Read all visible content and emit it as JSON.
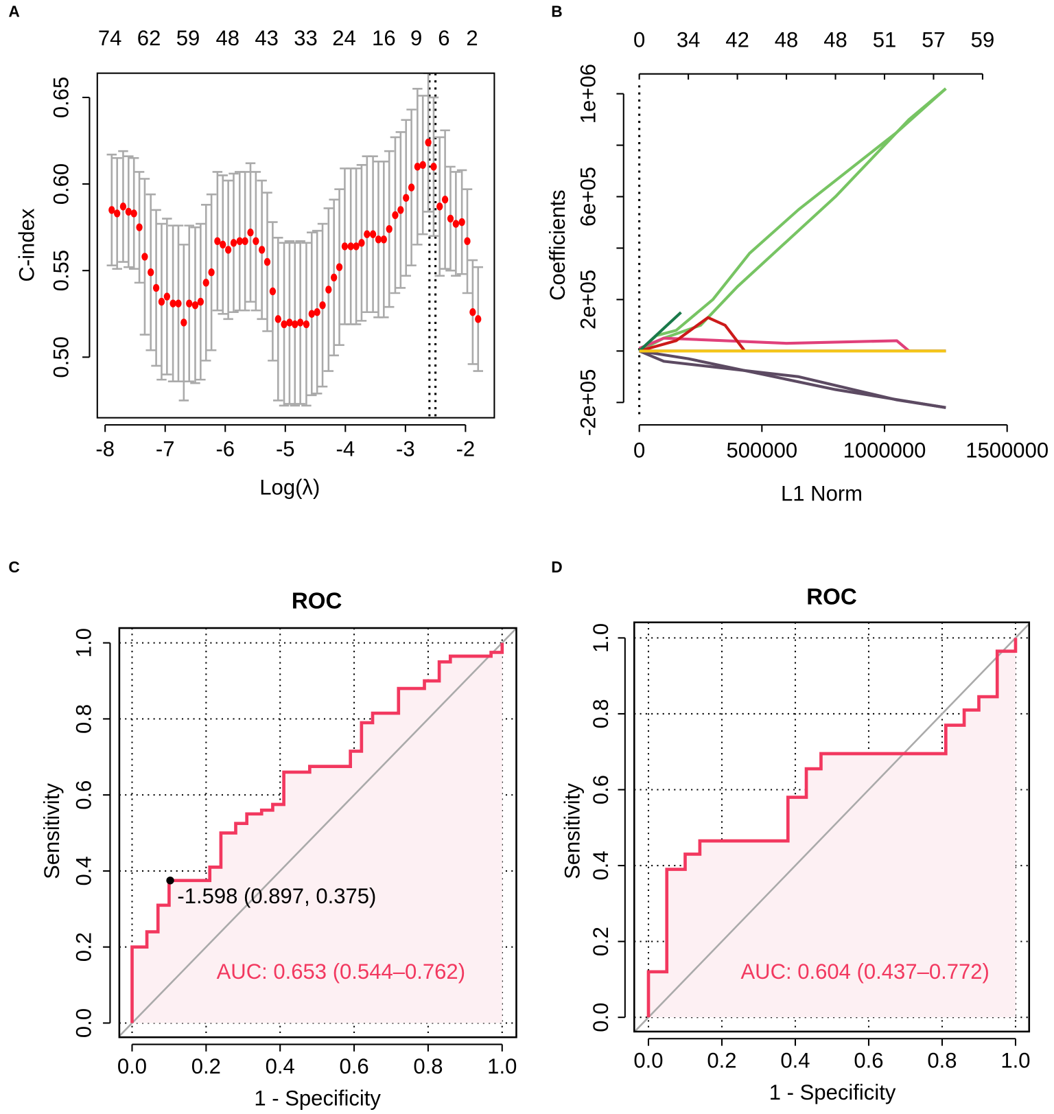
{
  "chart_data": [
    {
      "type": "errorbar",
      "panel_label": "A",
      "xlabel": "Log(λ)",
      "ylabel": "C-index",
      "x": [
        -7.89,
        -7.8,
        -7.7,
        -7.61,
        -7.52,
        -7.43,
        -7.34,
        -7.24,
        -7.15,
        -7.06,
        -6.97,
        -6.87,
        -6.78,
        -6.69,
        -6.6,
        -6.5,
        -6.41,
        -6.32,
        -6.23,
        -6.13,
        -6.04,
        -5.95,
        -5.86,
        -5.76,
        -5.67,
        -5.58,
        -5.49,
        -5.39,
        -5.3,
        -5.21,
        -5.12,
        -5.02,
        -4.93,
        -4.84,
        -4.75,
        -4.65,
        -4.56,
        -4.47,
        -4.38,
        -4.28,
        -4.19,
        -4.1,
        -4.01,
        -3.91,
        -3.82,
        -3.73,
        -3.64,
        -3.54,
        -3.45,
        -3.36,
        -3.27,
        -3.17,
        -3.08,
        -2.99,
        -2.9,
        -2.8,
        -2.71,
        -2.62,
        -2.53,
        -2.43,
        -2.34,
        -2.25,
        -2.16,
        -2.06,
        -1.97,
        -1.88,
        -1.79
      ],
      "values": [
        0.585,
        0.583,
        0.587,
        0.584,
        0.583,
        0.575,
        0.558,
        0.549,
        0.54,
        0.532,
        0.535,
        0.531,
        0.531,
        0.52,
        0.531,
        0.53,
        0.532,
        0.543,
        0.549,
        0.567,
        0.565,
        0.562,
        0.566,
        0.567,
        0.567,
        0.572,
        0.567,
        0.562,
        0.555,
        0.538,
        0.522,
        0.519,
        0.52,
        0.519,
        0.52,
        0.519,
        0.525,
        0.526,
        0.53,
        0.539,
        0.546,
        0.552,
        0.564,
        0.564,
        0.564,
        0.566,
        0.571,
        0.571,
        0.568,
        0.568,
        0.574,
        0.582,
        0.585,
        0.592,
        0.598,
        0.61,
        0.611,
        0.624,
        0.61,
        0.587,
        0.591,
        0.58,
        0.577,
        0.578,
        0.567,
        0.526,
        0.522
      ],
      "errors": [
        0.032,
        0.032,
        0.032,
        0.032,
        0.032,
        0.032,
        0.045,
        0.045,
        0.045,
        0.045,
        0.045,
        0.045,
        0.045,
        0.045,
        0.045,
        0.045,
        0.045,
        0.045,
        0.045,
        0.04,
        0.04,
        0.04,
        0.04,
        0.04,
        0.04,
        0.04,
        0.04,
        0.04,
        0.04,
        0.04,
        0.047,
        0.047,
        0.047,
        0.047,
        0.047,
        0.047,
        0.047,
        0.047,
        0.047,
        0.047,
        0.045,
        0.045,
        0.045,
        0.045,
        0.045,
        0.045,
        0.045,
        0.045,
        0.045,
        0.045,
        0.045,
        0.045,
        0.045,
        0.045,
        0.045,
        0.045,
        0.04,
        0.04,
        0.04,
        0.04,
        0.04,
        0.03,
        0.03,
        0.03,
        0.03,
        0.03,
        0.03
      ],
      "color": "#ff0000",
      "error_color": "#aaaaaa",
      "vlines": [
        -2.6,
        -2.5
      ],
      "xlim": [
        -8.13,
        -1.52
      ],
      "ylim": [
        0.465,
        0.664
      ],
      "xticks": [
        -8,
        -7,
        -6,
        -5,
        -4,
        -3,
        -2
      ],
      "yticks": [
        {
          "value": 0.5,
          "label": "0.50"
        },
        0.55,
        {
          "value": 0.6,
          "label": "0.60"
        },
        0.65
      ],
      "top_ticks": [
        {
          "value": -7.92,
          "label": "74"
        },
        {
          "value": -7.27,
          "label": "62"
        },
        {
          "value": -6.62,
          "label": "59"
        },
        {
          "value": -5.96,
          "label": "48"
        },
        {
          "value": -5.31,
          "label": "43"
        },
        {
          "value": -4.66,
          "label": "33"
        },
        {
          "value": -4.02,
          "label": "24"
        },
        {
          "value": -3.36,
          "label": "16"
        },
        {
          "value": -2.82,
          "label": "9"
        },
        {
          "value": -2.36,
          "label": "6"
        },
        {
          "value": -1.89,
          "label": "2"
        }
      ]
    },
    {
      "type": "line",
      "panel_label": "B",
      "xlabel": "L1 Norm",
      "ylabel": "Coefficients",
      "series": [
        {
          "color": "#77c463",
          "x": [
            0,
            70000,
            150000,
            300000,
            450000,
            650000,
            1050000,
            1250000
          ],
          "values": [
            0,
            60000,
            80000,
            200000,
            380000,
            550000,
            850000,
            1020000
          ]
        },
        {
          "color": "#77c463",
          "x": [
            0,
            100000,
            250000,
            400000,
            800000,
            1100000,
            1250000
          ],
          "values": [
            0,
            50000,
            100000,
            250000,
            600000,
            900000,
            1020000
          ]
        },
        {
          "color": "#5c4a62",
          "x": [
            0,
            100000,
            650000,
            1050000,
            1250000
          ],
          "values": [
            0,
            -40000,
            -100000,
            -190000,
            -220000
          ]
        },
        {
          "color": "#5c4a62",
          "x": [
            0,
            200000,
            800000,
            1250000
          ],
          "values": [
            0,
            -30000,
            -150000,
            -220000
          ]
        },
        {
          "color": "#e0407a",
          "x": [
            0,
            100000,
            600000,
            1050000,
            1100000,
            1250000
          ],
          "values": [
            10000,
            50000,
            30000,
            40000,
            0,
            0
          ]
        },
        {
          "color": "#cc1a1a",
          "x": [
            0,
            150000,
            280000,
            350000,
            430000
          ],
          "values": [
            0,
            40000,
            130000,
            100000,
            0
          ]
        },
        {
          "color": "#1a7a4a",
          "x": [
            0,
            170000
          ],
          "values": [
            0,
            150000
          ]
        },
        {
          "color": "#000000",
          "x": [
            0,
            1250000
          ],
          "values": [
            0,
            0
          ]
        },
        {
          "color": "#f5c518",
          "x": [
            0,
            1250000
          ],
          "values": [
            0,
            0
          ]
        }
      ],
      "vlines": [
        0
      ],
      "xlim": [
        -64000,
        1500000
      ],
      "ylim": [
        -265000,
        1033000
      ],
      "xticks": [
        0,
        500000,
        1000000,
        1500000
      ],
      "yticks": [
        {
          "value": -200000,
          "label": "-2e+05"
        },
        {
          "value": 200000,
          "label": "2e+05"
        },
        {
          "value": 600000,
          "label": "6e+05"
        },
        {
          "value": 1000000,
          "label": "1e+06"
        }
      ],
      "yminor_ticks": [
        0,
        400000,
        800000
      ],
      "top_ticks": [
        {
          "value": 0,
          "label": "0"
        },
        {
          "value": 200000,
          "label": "34"
        },
        {
          "value": 400000,
          "label": "42"
        },
        {
          "value": 600000,
          "label": "48"
        },
        {
          "value": 800000,
          "label": "48"
        },
        {
          "value": 1000000,
          "label": "51"
        },
        {
          "value": 1200000,
          "label": "57"
        },
        {
          "value": 1400000,
          "label": "59"
        }
      ]
    },
    {
      "type": "roc",
      "panel_label": "C",
      "title": "ROC",
      "xlabel": "1 - Specificity",
      "ylabel": "Sensitivity",
      "x": [
        0,
        0,
        0.04,
        0.04,
        0.07,
        0.07,
        0.1,
        0.1,
        0.21,
        0.21,
        0.24,
        0.24,
        0.28,
        0.28,
        0.31,
        0.31,
        0.35,
        0.35,
        0.38,
        0.38,
        0.41,
        0.41,
        0.48,
        0.48,
        0.59,
        0.59,
        0.62,
        0.62,
        0.65,
        0.65,
        0.72,
        0.72,
        0.79,
        0.79,
        0.83,
        0.83,
        0.86,
        0.86,
        0.97,
        0.97,
        1,
        1
      ],
      "values": [
        0,
        0.2,
        0.2,
        0.24,
        0.24,
        0.31,
        0.31,
        0.375,
        0.375,
        0.41,
        0.41,
        0.5,
        0.5,
        0.525,
        0.525,
        0.55,
        0.55,
        0.56,
        0.56,
        0.575,
        0.575,
        0.66,
        0.66,
        0.675,
        0.675,
        0.715,
        0.715,
        0.79,
        0.79,
        0.815,
        0.815,
        0.88,
        0.88,
        0.9,
        0.9,
        0.95,
        0.95,
        0.965,
        0.965,
        0.975,
        0.975,
        1
      ],
      "color": "#f2385f",
      "fill": "#fdf0f3",
      "auc_label": "AUC: 0.653 (0.544–0.762)",
      "threshold_point": {
        "x": 0.103,
        "y": 0.375,
        "label": "-1.598 (0.897, 0.375)"
      },
      "grid": true,
      "xlim": [
        -0.0345,
        1.0384
      ],
      "ylim": [
        -0.0374,
        1.039
      ],
      "xticks": [
        {
          "value": 0,
          "label": "0.0"
        },
        0.2,
        0.4,
        0.6,
        0.8,
        {
          "value": 1,
          "label": "1.0"
        }
      ],
      "yticks": [
        {
          "value": 0,
          "label": "0.0"
        },
        0.2,
        0.4,
        0.6,
        0.8,
        {
          "value": 1,
          "label": "1.0"
        }
      ]
    },
    {
      "type": "roc",
      "panel_label": "D",
      "title": "ROC",
      "xlabel": "1 - Specificity",
      "ylabel": "Sensitivity",
      "x": [
        0,
        0,
        0.05,
        0.05,
        0.1,
        0.1,
        0.14,
        0.14,
        0.38,
        0.38,
        0.43,
        0.43,
        0.47,
        0.47,
        0.81,
        0.81,
        0.86,
        0.86,
        0.9,
        0.9,
        0.95,
        0.95,
        1,
        1
      ],
      "values": [
        0,
        0.12,
        0.12,
        0.39,
        0.39,
        0.43,
        0.43,
        0.465,
        0.465,
        0.58,
        0.58,
        0.655,
        0.655,
        0.695,
        0.695,
        0.77,
        0.77,
        0.81,
        0.81,
        0.845,
        0.845,
        0.965,
        0.965,
        1
      ],
      "color": "#f2385f",
      "fill": "#fdf0f3",
      "auc_label": "AUC: 0.604 (0.437–0.772)",
      "grid": true,
      "xlim": [
        -0.0387,
        1.037
      ],
      "ylim": [
        -0.0375,
        1.041
      ],
      "xticks": [
        {
          "value": 0,
          "label": "0.0"
        },
        0.2,
        0.4,
        0.6,
        0.8,
        {
          "value": 1,
          "label": "1.0"
        }
      ],
      "yticks": [
        {
          "value": 0,
          "label": "0.0"
        },
        0.2,
        0.4,
        0.6,
        0.8,
        {
          "value": 1,
          "label": "1.0"
        }
      ]
    }
  ]
}
